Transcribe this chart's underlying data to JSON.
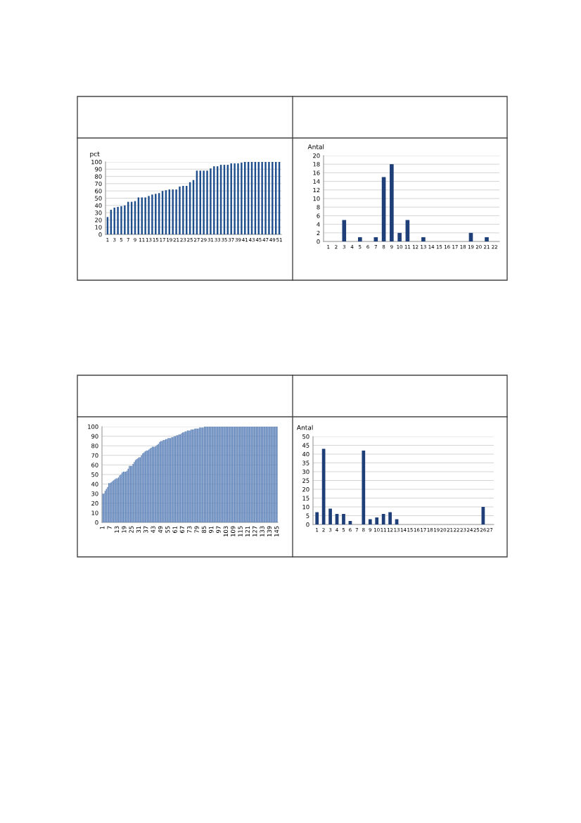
{
  "chart_data": [
    {
      "type": "bar",
      "ylabel": "pct",
      "grid": "y",
      "color": "#1f4e8c",
      "ylim": [
        0,
        100
      ],
      "yticks": [
        0,
        10,
        20,
        30,
        40,
        50,
        60,
        70,
        80,
        90,
        100
      ],
      "categories": [
        "1",
        null,
        "3",
        null,
        "5",
        null,
        "7",
        null,
        "9",
        null,
        "11",
        null,
        "13",
        null,
        "15",
        null,
        "17",
        null,
        "19",
        null,
        "21",
        null,
        "23",
        null,
        "25",
        null,
        "27",
        null,
        "29",
        null,
        "31",
        null,
        "33",
        null,
        "35",
        null,
        "37",
        null,
        "39",
        null,
        "41",
        null,
        "43",
        null,
        "45",
        null,
        "47",
        null,
        "49",
        null,
        "51"
      ],
      "values": [
        24,
        34,
        37,
        38,
        39,
        40,
        45,
        45,
        46,
        51,
        51,
        51,
        53,
        55,
        56,
        57,
        60,
        61,
        62,
        62,
        62,
        66,
        67,
        67,
        72,
        75,
        88,
        88,
        88,
        88,
        91,
        94,
        94,
        96,
        96,
        96,
        98,
        98,
        98,
        99,
        100,
        100,
        100,
        100,
        100,
        100,
        100,
        100,
        100,
        100,
        100
      ]
    },
    {
      "type": "bar",
      "ylabel": "Antal",
      "grid": "y",
      "color": "#1f3f78",
      "ylim": [
        0,
        20
      ],
      "yticks": [
        0,
        2,
        4,
        6,
        8,
        10,
        12,
        14,
        16,
        18,
        20
      ],
      "categories": [
        "1",
        "2",
        "3",
        "4",
        "5",
        "6",
        "7",
        "8",
        "9",
        "10",
        "11",
        "12",
        "13",
        "14",
        "15",
        "16",
        "17",
        "18",
        "19",
        "20",
        "21",
        "22"
      ],
      "values": [
        0,
        0,
        5,
        0,
        1,
        0,
        1,
        15,
        18,
        2,
        5,
        0,
        1,
        0,
        0,
        0,
        0,
        0,
        2,
        0,
        1,
        0
      ]
    },
    {
      "type": "bar",
      "grid": "y",
      "color": "#5b80b8",
      "ylim": [
        0,
        100
      ],
      "yticks": [
        0,
        10,
        20,
        30,
        40,
        50,
        60,
        70,
        80,
        90,
        100
      ],
      "categories": [
        "1",
        null,
        null,
        null,
        null,
        null,
        "7",
        null,
        null,
        null,
        null,
        null,
        "13",
        null,
        null,
        null,
        null,
        null,
        "19",
        null,
        null,
        null,
        null,
        null,
        "25",
        null,
        null,
        null,
        null,
        null,
        "31",
        null,
        null,
        null,
        null,
        null,
        "37",
        null,
        null,
        null,
        null,
        null,
        "43",
        null,
        null,
        null,
        null,
        null,
        "49",
        null,
        null,
        null,
        null,
        null,
        "55",
        null,
        null,
        null,
        null,
        null,
        "61",
        null,
        null,
        null,
        null,
        null,
        "67",
        null,
        null,
        null,
        null,
        null,
        "73",
        null,
        null,
        null,
        null,
        null,
        "79",
        null,
        null,
        null,
        null,
        null,
        "85",
        null,
        null,
        null,
        null,
        null,
        "91",
        null,
        null,
        null,
        null,
        null,
        "97",
        null,
        null,
        null,
        null,
        null,
        "103",
        null,
        null,
        null,
        null,
        null,
        "109",
        null,
        null,
        null,
        null,
        null,
        "115",
        null,
        null,
        null,
        null,
        null,
        "121",
        null,
        null,
        null,
        null,
        null,
        "127",
        null,
        null,
        null,
        null,
        null,
        "133",
        null,
        null,
        null,
        null,
        null,
        "139",
        null,
        null,
        null,
        null,
        null,
        "145"
      ],
      "values": [
        30,
        30,
        33,
        35,
        37,
        41,
        41,
        42,
        43,
        44,
        45,
        46,
        46,
        47,
        49,
        50,
        52,
        53,
        53,
        53,
        54,
        56,
        59,
        59,
        59,
        61,
        63,
        65,
        66,
        67,
        68,
        68,
        70,
        72,
        73,
        74,
        75,
        75,
        76,
        77,
        78,
        79,
        79,
        79,
        80,
        81,
        82,
        84,
        85,
        85,
        86,
        86,
        87,
        87,
        88,
        88,
        88,
        89,
        89,
        90,
        90,
        91,
        91,
        92,
        92,
        93,
        94,
        94,
        95,
        95,
        96,
        96,
        96,
        97,
        97,
        97,
        98,
        98,
        98,
        98,
        99,
        99,
        99,
        99,
        100,
        100,
        100,
        100,
        100,
        100,
        100,
        100,
        100,
        100,
        100,
        100,
        100,
        100,
        100,
        100,
        100,
        100,
        100,
        100,
        100,
        100,
        100,
        100,
        100,
        100,
        100,
        100,
        100,
        100,
        100,
        100,
        100,
        100,
        100,
        100,
        100,
        100,
        100,
        100,
        100,
        100,
        100,
        100,
        100,
        100,
        100,
        100,
        100,
        100,
        100,
        100,
        100,
        100,
        100,
        100,
        100,
        100,
        100,
        100,
        100
      ]
    },
    {
      "type": "bar",
      "ylabel": "Antal",
      "grid": "y",
      "color": "#1f3f78",
      "ylim": [
        0,
        50
      ],
      "yticks": [
        0,
        5,
        10,
        15,
        20,
        25,
        30,
        35,
        40,
        45,
        50
      ],
      "categories": [
        "1",
        "2",
        "3",
        "4",
        "5",
        "6",
        "7",
        "8",
        "9",
        "10",
        "11",
        "12",
        "13",
        "14",
        "15",
        "16",
        "17",
        "18",
        "19",
        "20",
        "21",
        "22",
        "23",
        "24",
        "25",
        "26",
        "27"
      ],
      "values": [
        7,
        43,
        9,
        6,
        6,
        2,
        0,
        42,
        3,
        4,
        6,
        7,
        3,
        0,
        0,
        0,
        0,
        0,
        0,
        0,
        0,
        0,
        0,
        0,
        0,
        10,
        0
      ]
    }
  ]
}
